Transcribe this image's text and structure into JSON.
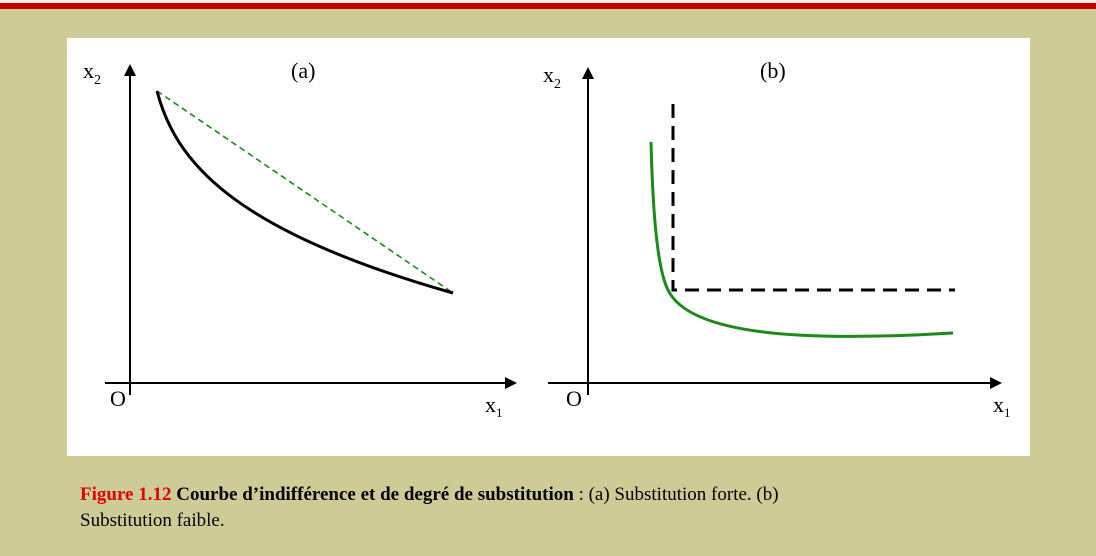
{
  "figure": {
    "panel_a": {
      "label": "(a)",
      "y_axis": {
        "base": "x",
        "sub": "2"
      },
      "x_axis": {
        "base": "x",
        "sub": "1"
      },
      "origin": "O"
    },
    "panel_b": {
      "label": "(b)",
      "y_axis": {
        "base": "x",
        "sub": "2"
      },
      "x_axis": {
        "base": "x",
        "sub": "1"
      },
      "origin": "O"
    },
    "caption": {
      "number": "Figure 1.12",
      "title": "Courbe d’indifférence et de degré de substitution",
      "text": " : (a) Substitution forte. (b) Substitution faible."
    }
  }
}
